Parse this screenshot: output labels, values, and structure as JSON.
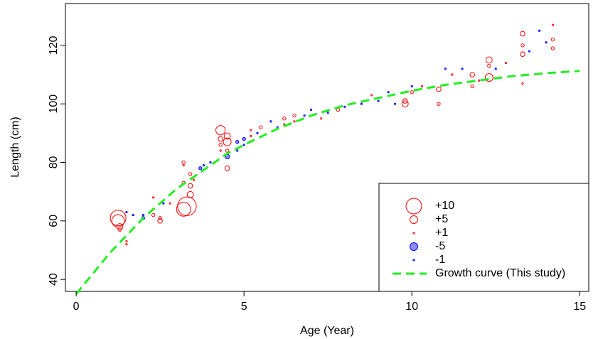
{
  "chart_data": {
    "type": "scatter",
    "x_label": "Age (Year)",
    "y_label": "Length (cm)",
    "xlim": [
      -0.32,
      15.27
    ],
    "ylim": [
      35.9,
      134.3
    ],
    "xticks": [
      0,
      5,
      10,
      15
    ],
    "yticks": [
      40,
      60,
      80,
      100,
      120
    ],
    "positive_color": "#ff0000",
    "negative_color": "#0000ff",
    "curve_color": "#22ee22",
    "points": {
      "x": [
        1.25,
        1.25,
        1.3,
        1.3,
        1.5,
        1.5,
        1.5,
        1.7,
        2,
        2,
        2.3,
        2.3,
        2.3,
        2.5,
        2.5,
        2.6,
        2.8,
        3.2,
        3.3,
        3.2,
        3.2,
        3.2,
        3.4,
        3.4,
        3.4,
        3.5,
        3.7,
        3.8,
        4,
        4.3,
        4.3,
        4.3,
        4.3,
        4.5,
        4.5,
        4.5,
        4.5,
        4.5,
        4.8,
        4.8,
        5,
        5,
        5.2,
        5.2,
        5.4,
        5.5,
        5.8,
        6,
        6.2,
        6.2,
        6.5,
        6.5,
        6.8,
        7,
        7.3,
        7.5,
        7.8,
        8,
        8.5,
        8.8,
        9,
        9.3,
        9.5,
        9.8,
        9.8,
        10,
        10,
        10.3,
        10.8,
        10.8,
        11,
        11.2,
        11.5,
        11.8,
        11.8,
        12,
        12.3,
        12.3,
        12.3,
        12.5,
        12.8,
        13.3,
        13.3,
        13.3,
        13.3,
        13.5,
        13.8,
        14.2,
        14.2,
        14.2,
        14
      ],
      "y": [
        61,
        60,
        58,
        57,
        53,
        52,
        63,
        62,
        61,
        62,
        62,
        64,
        68,
        60,
        61,
        66,
        66,
        64,
        65,
        80,
        79,
        73,
        69,
        72,
        76,
        74,
        78,
        79,
        80,
        91,
        88,
        86,
        84,
        89,
        87,
        78,
        84,
        82,
        87,
        84,
        88,
        86,
        91,
        89,
        90,
        92,
        94,
        92,
        95,
        93,
        96,
        94,
        96,
        98,
        95,
        97,
        98,
        99,
        100,
        103,
        101,
        104,
        100,
        101,
        100,
        104,
        106,
        106,
        105,
        100,
        112,
        110,
        112,
        106,
        110,
        108,
        109,
        115,
        113,
        112,
        114,
        124,
        117,
        120,
        107,
        118,
        125,
        127,
        122,
        119,
        121
      ],
      "size": [
        10,
        8,
        4,
        2,
        1,
        1,
        -1,
        -1,
        -2,
        -1,
        2,
        1,
        1,
        3,
        2,
        -1,
        1,
        9,
        12,
        2,
        1,
        2,
        4,
        3,
        2,
        1,
        -2,
        -1,
        -1,
        6,
        3,
        2,
        1,
        4,
        5,
        3,
        2,
        -3,
        -2,
        -1,
        -2,
        -1,
        1,
        1,
        -1,
        2,
        -1,
        -1,
        2,
        1,
        2,
        1,
        -1,
        -1,
        1,
        -1,
        2,
        -1,
        -1,
        1,
        -1,
        -1,
        -1,
        3,
        4,
        2,
        -1,
        1,
        3,
        2,
        -1,
        1,
        -1,
        2,
        3,
        1,
        5,
        4,
        2,
        -1,
        1,
        3,
        3,
        2,
        1,
        -1,
        -1,
        1,
        2,
        2,
        -1
      ]
    },
    "curve": {
      "name": "Growth curve (This study)",
      "x": [
        0,
        1,
        1.5,
        2,
        2.5,
        3,
        3.5,
        4,
        4.5,
        5,
        6,
        7,
        8,
        9,
        10,
        11,
        12,
        13,
        14,
        15
      ],
      "y": [
        35,
        49,
        55,
        61,
        66,
        71,
        75,
        79,
        83,
        86,
        91.5,
        96,
        99.5,
        102,
        104.5,
        106.5,
        108,
        109.5,
        110.5,
        111.3
      ]
    },
    "legend": [
      {
        "label": "+10",
        "value": 10
      },
      {
        "label": "+5",
        "value": 5
      },
      {
        "label": "+1",
        "value": 1
      },
      {
        "label": "-5",
        "value": -5
      },
      {
        "label": "-1",
        "value": -1
      }
    ]
  }
}
